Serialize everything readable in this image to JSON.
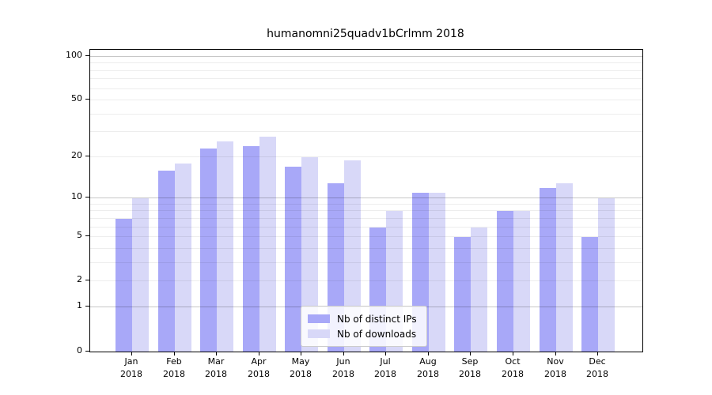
{
  "title": "humanomni25quadv1bCrlmm 2018",
  "chart_data": {
    "type": "bar",
    "title": "humanomni25quadv1bCrlmm 2018",
    "categories": [
      "Jan",
      "Feb",
      "Mar",
      "Apr",
      "May",
      "Jun",
      "Jul",
      "Aug",
      "Sep",
      "Oct",
      "Nov",
      "Dec"
    ],
    "x_year_label": "2018",
    "series": [
      {
        "name": "Nb of distinct IPs",
        "color": "#a8a8f8",
        "values": [
          7,
          16,
          23,
          24,
          17,
          13,
          6,
          11,
          5,
          8,
          12,
          5
        ]
      },
      {
        "name": "Nb of downloads",
        "color": "#d8d8f8",
        "values": [
          10,
          18,
          26,
          28,
          20,
          19,
          8,
          11,
          6,
          8,
          13,
          10
        ]
      }
    ],
    "yscale": "log1p",
    "y_tick_values": [
      100,
      50,
      20,
      10,
      5,
      2,
      1,
      0
    ],
    "ylim": [
      0,
      110
    ],
    "grid": "horizontal",
    "legend_position": "inside-bottom-center",
    "colors": {
      "axis": "#000000",
      "grid_major": "#c7c7c7",
      "grid_minor": "#ebebeb"
    }
  }
}
